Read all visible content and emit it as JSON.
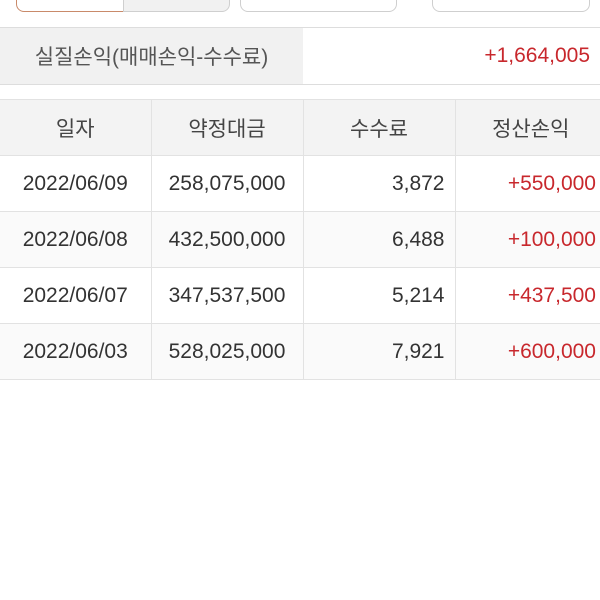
{
  "summary": {
    "label": "실질손익(매매손익-수수료)",
    "value": "+1,664,005"
  },
  "table": {
    "headers": [
      "일자",
      "약정대금",
      "수수료",
      "정산손익"
    ],
    "rows": [
      [
        "2022/06/09",
        "258,075,000",
        "3,872",
        "+550,000"
      ],
      [
        "2022/06/08",
        "432,500,000",
        "6,488",
        "+100,000"
      ],
      [
        "2022/06/07",
        "347,537,500",
        "5,214",
        "+437,500"
      ],
      [
        "2022/06/03",
        "528,025,000",
        "7,921",
        "+600,000"
      ]
    ]
  },
  "colors": {
    "profit": "#c8282d",
    "accent_border": "#c98a6a"
  }
}
